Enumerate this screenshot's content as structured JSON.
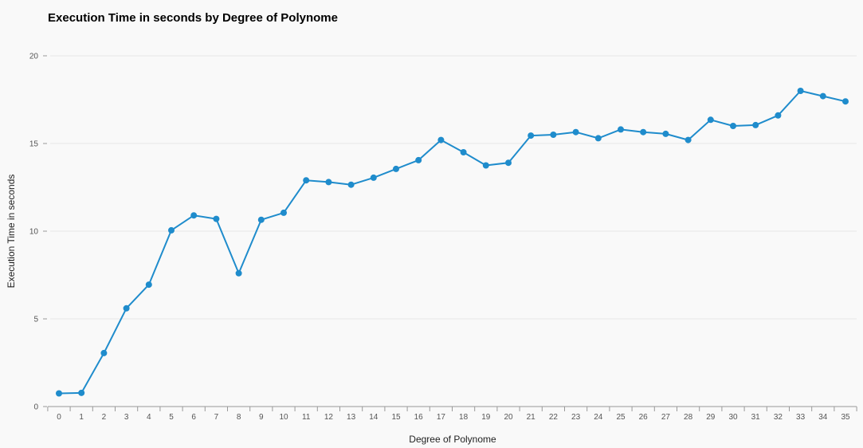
{
  "chart_data": {
    "type": "line",
    "title": "Execution Time in seconds by Degree of Polynome",
    "xlabel": "Degree of Polynome",
    "ylabel": "Execution Time in seconds",
    "x": [
      0,
      1,
      2,
      3,
      4,
      5,
      6,
      7,
      8,
      9,
      10,
      11,
      12,
      13,
      14,
      15,
      16,
      17,
      18,
      19,
      20,
      21,
      22,
      23,
      24,
      25,
      26,
      27,
      28,
      29,
      30,
      31,
      32,
      33,
      34,
      35
    ],
    "series": [
      {
        "values": [
          0.75,
          0.78,
          3.05,
          5.6,
          6.95,
          10.05,
          10.9,
          10.7,
          7.6,
          10.65,
          11.05,
          12.9,
          12.8,
          12.65,
          13.05,
          13.55,
          14.05,
          15.2,
          14.5,
          13.75,
          13.9,
          15.45,
          15.5,
          15.65,
          15.3,
          15.8,
          15.65,
          15.55,
          15.2,
          16.35,
          16.0,
          16.05,
          16.6,
          18.0,
          17.7,
          17.4
        ]
      }
    ],
    "xlim": [
      0,
      35
    ],
    "ylim": [
      0,
      20
    ],
    "y_ticks": [
      0,
      5,
      10,
      15,
      20
    ],
    "grid": true,
    "legend": "none",
    "colors": {
      "line": "#1f8ccc",
      "gridline": "#e6e6e6",
      "axis": "#999999",
      "background": "#f9f9f9"
    }
  }
}
